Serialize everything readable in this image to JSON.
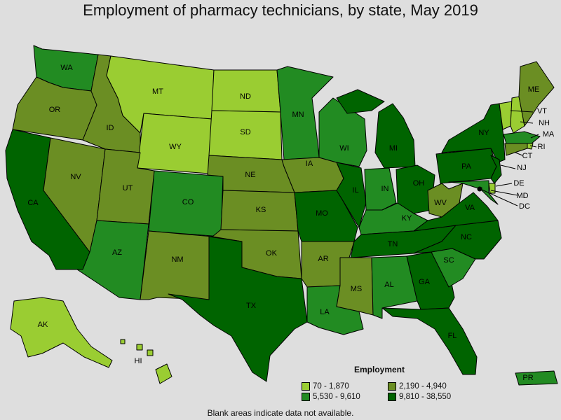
{
  "title": "Employment of pharmacy technicians, by state, May 2019",
  "legend": {
    "title": "Employment",
    "items": [
      {
        "label": "70 - 1,870",
        "color": "#9acd32"
      },
      {
        "label": "5,530 - 9,610",
        "color": "#228b22"
      },
      {
        "label": "2,190 - 4,940",
        "color": "#6b8e23"
      },
      {
        "label": "9,810 - 38,550",
        "color": "#006400"
      }
    ]
  },
  "footnote": "Blank areas indicate data not available.",
  "states": [
    {
      "code": "WA",
      "cls": 1
    },
    {
      "code": "OR",
      "cls": 2
    },
    {
      "code": "CA",
      "cls": 3
    },
    {
      "code": "NV",
      "cls": 2
    },
    {
      "code": "ID",
      "cls": 2
    },
    {
      "code": "MT",
      "cls": 0
    },
    {
      "code": "WY",
      "cls": 0
    },
    {
      "code": "UT",
      "cls": 2
    },
    {
      "code": "AZ",
      "cls": 1
    },
    {
      "code": "CO",
      "cls": 1
    },
    {
      "code": "NM",
      "cls": 2
    },
    {
      "code": "ND",
      "cls": 0
    },
    {
      "code": "SD",
      "cls": 0
    },
    {
      "code": "NE",
      "cls": 2
    },
    {
      "code": "KS",
      "cls": 2
    },
    {
      "code": "OK",
      "cls": 2
    },
    {
      "code": "TX",
      "cls": 3
    },
    {
      "code": "MN",
      "cls": 1
    },
    {
      "code": "IA",
      "cls": 2
    },
    {
      "code": "MO",
      "cls": 3
    },
    {
      "code": "AR",
      "cls": 2
    },
    {
      "code": "LA",
      "cls": 1
    },
    {
      "code": "WI",
      "cls": 1
    },
    {
      "code": "IL",
      "cls": 3
    },
    {
      "code": "MI",
      "cls": 3
    },
    {
      "code": "IN",
      "cls": 1
    },
    {
      "code": "OH",
      "cls": 3
    },
    {
      "code": "KY",
      "cls": 1
    },
    {
      "code": "TN",
      "cls": 3
    },
    {
      "code": "MS",
      "cls": 2
    },
    {
      "code": "AL",
      "cls": 1
    },
    {
      "code": "GA",
      "cls": 3
    },
    {
      "code": "FL",
      "cls": 3
    },
    {
      "code": "SC",
      "cls": 1
    },
    {
      "code": "NC",
      "cls": 3
    },
    {
      "code": "VA",
      "cls": 3
    },
    {
      "code": "WV",
      "cls": 2
    },
    {
      "code": "PA",
      "cls": 3
    },
    {
      "code": "NY",
      "cls": 3
    },
    {
      "code": "VT",
      "cls": 0
    },
    {
      "code": "NH",
      "cls": 0
    },
    {
      "code": "ME",
      "cls": 2
    },
    {
      "code": "MA",
      "cls": 1
    },
    {
      "code": "RI",
      "cls": 0
    },
    {
      "code": "CT",
      "cls": 2
    },
    {
      "code": "NJ",
      "cls": 3
    },
    {
      "code": "DE",
      "cls": 0
    },
    {
      "code": "MD",
      "cls": 1
    },
    {
      "code": "DC",
      "cls": 0
    },
    {
      "code": "AK",
      "cls": 0
    },
    {
      "code": "HI",
      "cls": 0
    },
    {
      "code": "PR",
      "cls": 1
    }
  ]
}
